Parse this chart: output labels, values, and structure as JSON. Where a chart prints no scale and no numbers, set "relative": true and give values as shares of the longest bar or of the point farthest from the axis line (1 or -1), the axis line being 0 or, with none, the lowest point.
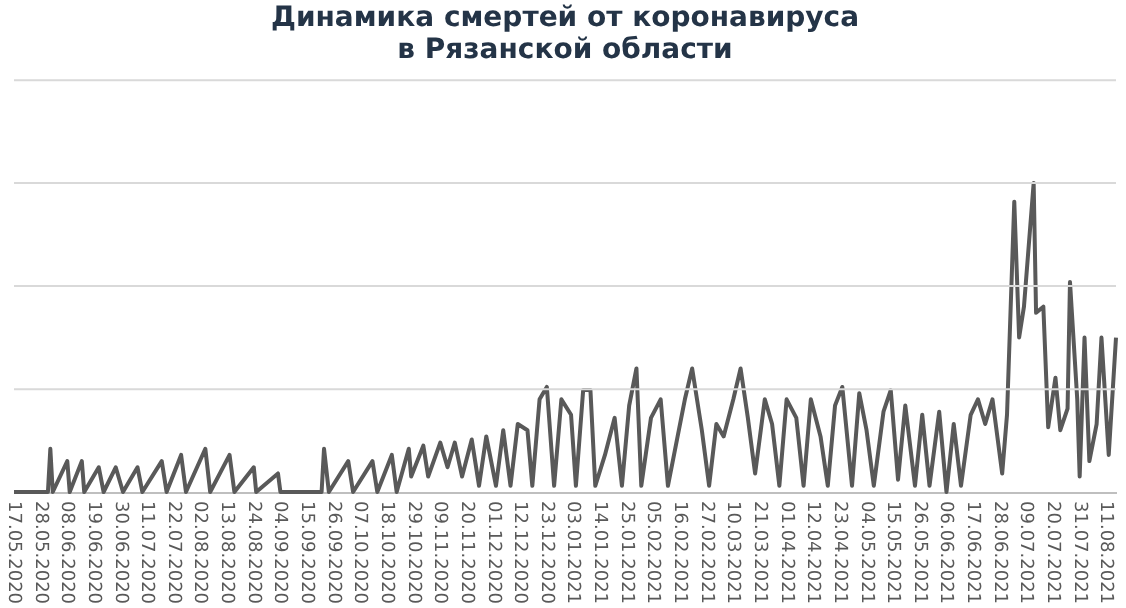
{
  "chart_data": {
    "type": "line",
    "title": [
      "Динамика смертей от коронавируса",
      "в Рязанской области"
    ],
    "relative": true,
    "marker": "none",
    "line_style": "solid",
    "ref_lines": [
      {
        "axis": "y",
        "value": 0.333,
        "color": "#d9d9d9"
      },
      {
        "axis": "y",
        "value": 0.667,
        "color": "#d9d9d9"
      },
      {
        "axis": "y",
        "value": 1.0,
        "color": "#d9d9d9"
      },
      {
        "axis": "y",
        "value": 1.333,
        "color": "#d9d9d9"
      }
    ],
    "xlim": [
      "2020-05-17",
      "2021-08-15"
    ],
    "xticks": [
      {
        "value": "2020-05-17",
        "label": "17.05.2020"
      },
      {
        "value": "2020-05-28",
        "label": "28.05.2020"
      },
      {
        "value": "2020-06-08",
        "label": "08.06.2020"
      },
      {
        "value": "2020-06-19",
        "label": "19.06.2020"
      },
      {
        "value": "2020-06-30",
        "label": "30.06.2020"
      },
      {
        "value": "2020-07-11",
        "label": "11.07.2020"
      },
      {
        "value": "2020-07-22",
        "label": "22.07.2020"
      },
      {
        "value": "2020-08-02",
        "label": "02.08.2020"
      },
      {
        "value": "2020-08-13",
        "label": "13.08.2020"
      },
      {
        "value": "2020-08-24",
        "label": "24.08.2020"
      },
      {
        "value": "2020-09-04",
        "label": "04.09.2020"
      },
      {
        "value": "2020-09-15",
        "label": "15.09.2020"
      },
      {
        "value": "2020-09-26",
        "label": "26.09.2020"
      },
      {
        "value": "2020-10-07",
        "label": "07.10.2020"
      },
      {
        "value": "2020-10-18",
        "label": "18.10.2020"
      },
      {
        "value": "2020-10-29",
        "label": "29.10.2020"
      },
      {
        "value": "2020-11-09",
        "label": "09.11.2020"
      },
      {
        "value": "2020-11-20",
        "label": "20.11.2020"
      },
      {
        "value": "2020-12-01",
        "label": "01.12.2020"
      },
      {
        "value": "2020-12-12",
        "label": "12.12.2020"
      },
      {
        "value": "2020-12-23",
        "label": "23.12.2020"
      },
      {
        "value": "2021-01-03",
        "label": "03.01.2021"
      },
      {
        "value": "2021-01-14",
        "label": "14.01.2021"
      },
      {
        "value": "2021-01-25",
        "label": "25.01.2021"
      },
      {
        "value": "2021-02-05",
        "label": "05.02.2021"
      },
      {
        "value": "2021-02-16",
        "label": "16.02.2021"
      },
      {
        "value": "2021-02-27",
        "label": "27.02.2021"
      },
      {
        "value": "2021-03-10",
        "label": "10.03.2021"
      },
      {
        "value": "2021-03-21",
        "label": "21.03.2021"
      },
      {
        "value": "2021-04-01",
        "label": "01.04.2021"
      },
      {
        "value": "2021-04-12",
        "label": "12.04.2021"
      },
      {
        "value": "2021-04-23",
        "label": "23.04.2021"
      },
      {
        "value": "2021-05-04",
        "label": "04.05.2021"
      },
      {
        "value": "2021-05-15",
        "label": "15.05.2021"
      },
      {
        "value": "2021-05-26",
        "label": "26.05.2021"
      },
      {
        "value": "2021-06-06",
        "label": "06.06.2021"
      },
      {
        "value": "2021-06-17",
        "label": "17.06.2021"
      },
      {
        "value": "2021-06-28",
        "label": "28.06.2021"
      },
      {
        "value": "2021-07-09",
        "label": "09.07.2021"
      },
      {
        "value": "2021-07-20",
        "label": "20.07.2021"
      },
      {
        "value": "2021-07-31",
        "label": "31.07.2021"
      },
      {
        "value": "2021-08-11",
        "label": "11.08.2021"
      }
    ],
    "series": [
      {
        "color": "#595959",
        "x": [
          "2020-05-17",
          "2020-05-31",
          "2020-06-01",
          "2020-06-02",
          "2020-06-08",
          "2020-06-09",
          "2020-06-14",
          "2020-06-15",
          "2020-06-21",
          "2020-06-23",
          "2020-06-28",
          "2020-07-01",
          "2020-07-07",
          "2020-07-09",
          "2020-07-17",
          "2020-07-19",
          "2020-07-25",
          "2020-07-27",
          "2020-08-04",
          "2020-08-06",
          "2020-08-14",
          "2020-08-16",
          "2020-08-24",
          "2020-08-25",
          "2020-09-03",
          "2020-09-04",
          "2020-09-21",
          "2020-09-22",
          "2020-09-24",
          "2020-10-02",
          "2020-10-04",
          "2020-10-12",
          "2020-10-14",
          "2020-10-20",
          "2020-10-22",
          "2020-10-27",
          "2020-10-28",
          "2020-11-02",
          "2020-11-04",
          "2020-11-09",
          "2020-11-12",
          "2020-11-15",
          "2020-11-18",
          "2020-11-22",
          "2020-11-25",
          "2020-11-28",
          "2020-12-02",
          "2020-12-05",
          "2020-12-08",
          "2020-12-11",
          "2020-12-15",
          "2020-12-17",
          "2020-12-20",
          "2020-12-23",
          "2020-12-26",
          "2020-12-29",
          "2021-01-02",
          "2021-01-04",
          "2021-01-07",
          "2021-01-10",
          "2021-01-12",
          "2021-01-16",
          "2021-01-20",
          "2021-01-23",
          "2021-01-26",
          "2021-01-29",
          "2021-01-31",
          "2021-02-04",
          "2021-02-08",
          "2021-02-11",
          "2021-02-15",
          "2021-02-18",
          "2021-02-21",
          "2021-02-25",
          "2021-02-28",
          "2021-03-03",
          "2021-03-06",
          "2021-03-10",
          "2021-03-13",
          "2021-03-16",
          "2021-03-19",
          "2021-03-23",
          "2021-03-26",
          "2021-03-29",
          "2021-04-01",
          "2021-04-05",
          "2021-04-08",
          "2021-04-11",
          "2021-04-15",
          "2021-04-18",
          "2021-04-21",
          "2021-04-24",
          "2021-04-28",
          "2021-05-01",
          "2021-05-04",
          "2021-05-07",
          "2021-05-11",
          "2021-05-14",
          "2021-05-17",
          "2021-05-20",
          "2021-05-24",
          "2021-05-27",
          "2021-05-30",
          "2021-06-03",
          "2021-06-06",
          "2021-06-09",
          "2021-06-12",
          "2021-06-16",
          "2021-06-19",
          "2021-06-22",
          "2021-06-25",
          "2021-06-29",
          "2021-07-01",
          "2021-07-04",
          "2021-07-06",
          "2021-07-08",
          "2021-07-12",
          "2021-07-13",
          "2021-07-16",
          "2021-07-18",
          "2021-07-21",
          "2021-07-23",
          "2021-07-26",
          "2021-07-27",
          "2021-07-30",
          "2021-07-31",
          "2021-08-02",
          "2021-08-04",
          "2021-08-07",
          "2021-08-09",
          "2021-08-12",
          "2021-08-15"
        ],
        "values": [
          0,
          0,
          0.14,
          0,
          0.1,
          0,
          0.1,
          0,
          0.08,
          0,
          0.08,
          0,
          0.08,
          0,
          0.1,
          0,
          0.12,
          0,
          0.14,
          0,
          0.12,
          0,
          0.08,
          0,
          0.06,
          0,
          0,
          0.14,
          0,
          0.1,
          0,
          0.1,
          0,
          0.12,
          0,
          0.14,
          0.05,
          0.15,
          0.05,
          0.16,
          0.08,
          0.16,
          0.05,
          0.17,
          0.02,
          0.18,
          0.02,
          0.2,
          0.02,
          0.22,
          0.2,
          0.02,
          0.3,
          0.34,
          0.02,
          0.3,
          0.25,
          0.02,
          0.33,
          0.33,
          0.02,
          0.12,
          0.24,
          0.02,
          0.28,
          0.4,
          0.02,
          0.24,
          0.3,
          0.02,
          0.18,
          0.3,
          0.4,
          0.2,
          0.02,
          0.22,
          0.18,
          0.3,
          0.4,
          0.24,
          0.06,
          0.3,
          0.22,
          0.02,
          0.3,
          0.24,
          0.02,
          0.3,
          0.18,
          0.02,
          0.28,
          0.34,
          0.02,
          0.32,
          0.2,
          0.02,
          0.26,
          0.33,
          0.04,
          0.28,
          0.02,
          0.25,
          0.02,
          0.26,
          0,
          0.22,
          0.02,
          0.25,
          0.3,
          0.22,
          0.3,
          0.06,
          0.25,
          0.94,
          0.5,
          0.6,
          1.0,
          0.58,
          0.6,
          0.21,
          0.37,
          0.2,
          0.27,
          0.68,
          0.3,
          0.05,
          0.5,
          0.1,
          0.22,
          0.5,
          0.12,
          0.5
        ]
      }
    ]
  }
}
